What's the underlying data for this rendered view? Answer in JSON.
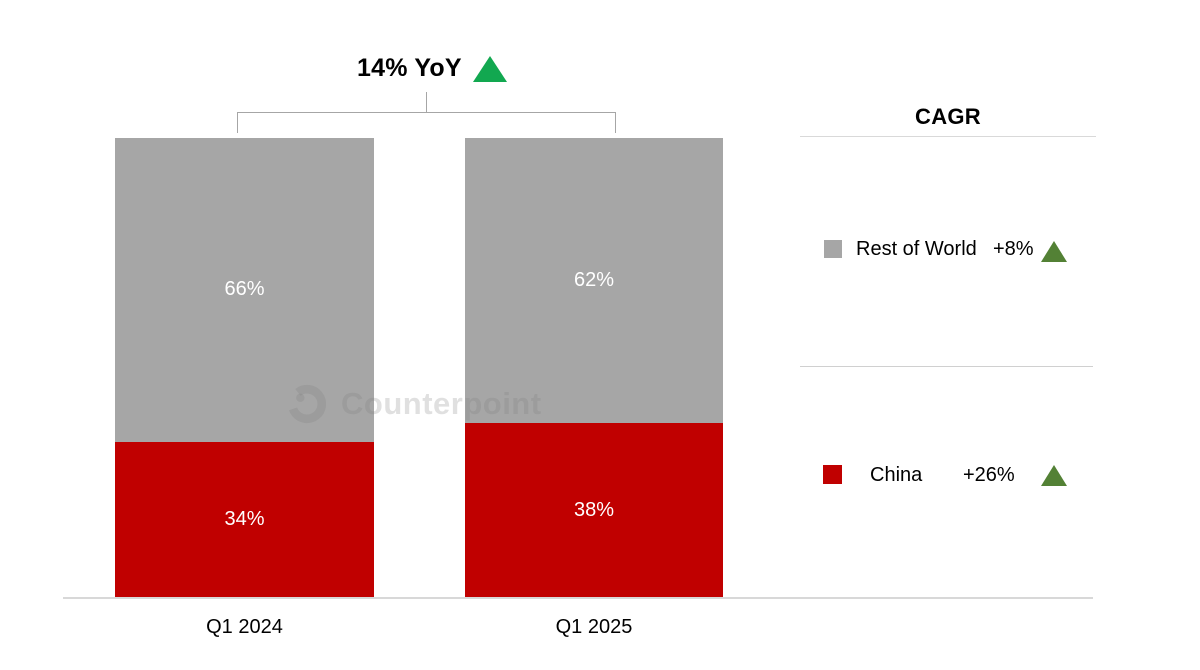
{
  "header": {
    "yoy_label": "14% YoY",
    "trend": "up",
    "trend_color": "#12A850"
  },
  "chart_data": {
    "type": "bar",
    "stacked": true,
    "title": "14% YoY",
    "annotation": "14% YoY with green up-triangle above both bars",
    "categories": [
      "Q1 2024",
      "Q1 2025"
    ],
    "series": [
      {
        "name": "China",
        "color": "#C00000",
        "values": [
          34,
          38
        ],
        "labels": [
          "34%",
          "38%"
        ]
      },
      {
        "name": "Rest of World",
        "color": "#A6A6A6",
        "values": [
          66,
          62
        ],
        "labels": [
          "66%",
          "62%"
        ]
      }
    ],
    "unit": "%",
    "ylim": [
      0,
      100
    ],
    "grid": false,
    "legend_position": "right"
  },
  "cagr_panel": {
    "header": "CAGR",
    "items": [
      {
        "label": "Rest of World",
        "value": "+8%",
        "swatch_color": "#A6A6A6",
        "trend": "up",
        "trend_color": "#538135",
        "trend_icon": "triangle-up-icon"
      },
      {
        "label": "China",
        "value": "+26%",
        "swatch_color": "#C00000",
        "trend": "up",
        "trend_color": "#538135",
        "trend_icon": "triangle-up-icon"
      }
    ]
  },
  "watermark": {
    "text": "Counterpoint",
    "logo": "counterpoint-logo-icon"
  }
}
